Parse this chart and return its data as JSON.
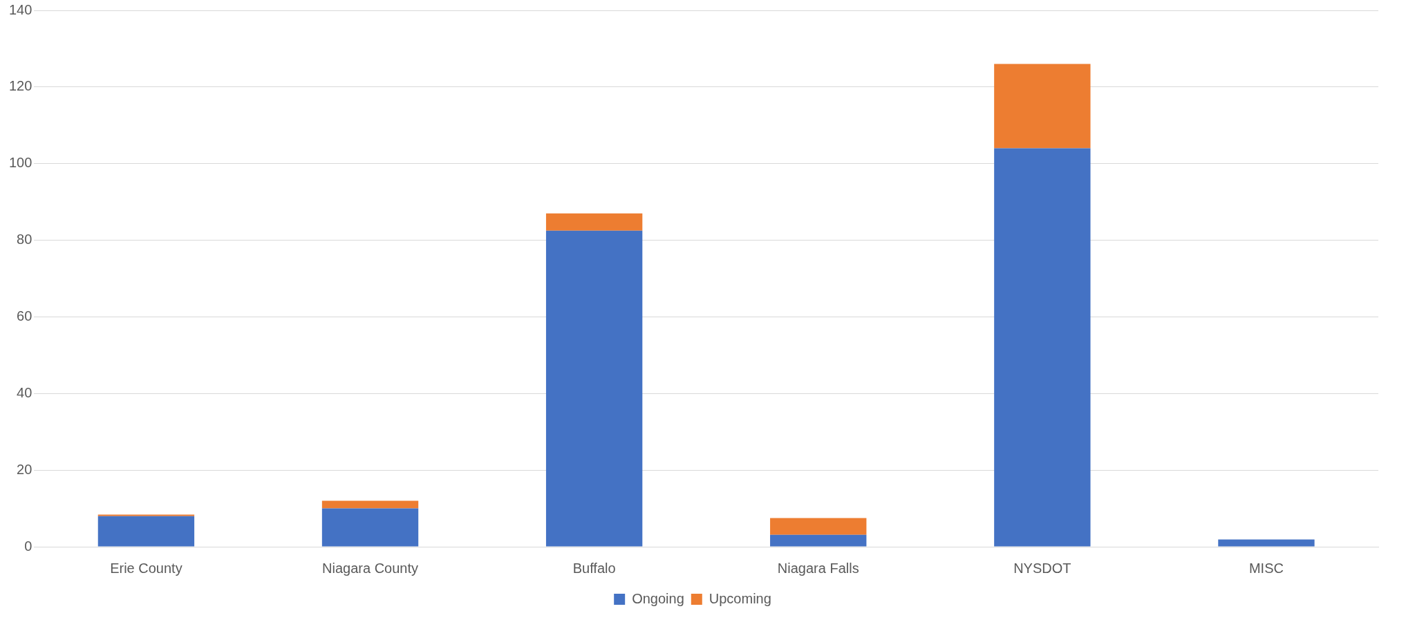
{
  "chart_data": {
    "type": "bar",
    "stacked": true,
    "categories": [
      "Erie County",
      "Niagara County",
      "Buffalo",
      "Niagara Falls",
      "NYSDOT",
      "MISC"
    ],
    "series": [
      {
        "name": "Ongoing",
        "color": "#4472c4",
        "values": [
          8,
          10,
          82.5,
          3.1,
          104,
          1.9
        ]
      },
      {
        "name": "Upcoming",
        "color": "#ed7d31",
        "values": [
          0.4,
          2,
          4.5,
          4.4,
          22,
          0
        ]
      }
    ],
    "ylim": [
      0,
      140
    ],
    "yticks": [
      0,
      20,
      40,
      60,
      80,
      100,
      120,
      140
    ],
    "grid": "y",
    "legend": "bottom"
  }
}
